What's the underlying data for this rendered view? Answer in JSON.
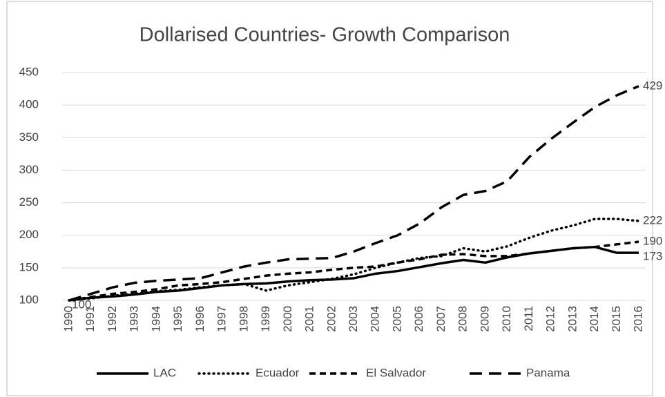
{
  "chart_data": {
    "type": "line",
    "title": "Dollarised Countries- Growth Comparison",
    "categories": [
      "1990",
      "1991",
      "1992",
      "1993",
      "1994",
      "1995",
      "1996",
      "1997",
      "1998",
      "1999",
      "2000",
      "2001",
      "2002",
      "2003",
      "2004",
      "2005",
      "2006",
      "2007",
      "2008",
      "2009",
      "2010",
      "2011",
      "2012",
      "2013",
      "2014",
      "2015",
      "2016"
    ],
    "series": [
      {
        "name": "LAC",
        "color": "#000000",
        "dash": "solid",
        "values": [
          100,
          104,
          106,
          109,
          113,
          115,
          119,
          123,
          125,
          126,
          129,
          131,
          132,
          134,
          141,
          145,
          151,
          157,
          162,
          158,
          166,
          172,
          176,
          180,
          182,
          173,
          173
        ]
      },
      {
        "name": "Ecuador",
        "color": "#000000",
        "dash": "dot",
        "values": [
          100,
          103,
          107,
          110,
          114,
          116,
          120,
          123,
          125,
          115,
          123,
          128,
          133,
          140,
          150,
          158,
          165,
          168,
          180,
          175,
          183,
          196,
          207,
          215,
          225,
          225,
          222
        ]
      },
      {
        "name": "El Salvador",
        "color": "#000000",
        "dash": "dash",
        "values": [
          100,
          105,
          110,
          113,
          117,
          123,
          125,
          128,
          133,
          138,
          141,
          143,
          147,
          150,
          152,
          158,
          163,
          170,
          171,
          168,
          168,
          172,
          176,
          180,
          182,
          186,
          190
        ]
      },
      {
        "name": "Panama",
        "color": "#000000",
        "dash": "longdash",
        "values": [
          100,
          110,
          120,
          127,
          130,
          132,
          134,
          143,
          152,
          158,
          163,
          164,
          165,
          175,
          188,
          200,
          218,
          243,
          262,
          268,
          283,
          320,
          348,
          373,
          397,
          415,
          429
        ]
      }
    ],
    "ylim": [
      100,
      450
    ],
    "yticks": [
      100,
      150,
      200,
      250,
      300,
      350,
      400,
      450
    ],
    "grid": true,
    "legend": "bottom"
  }
}
